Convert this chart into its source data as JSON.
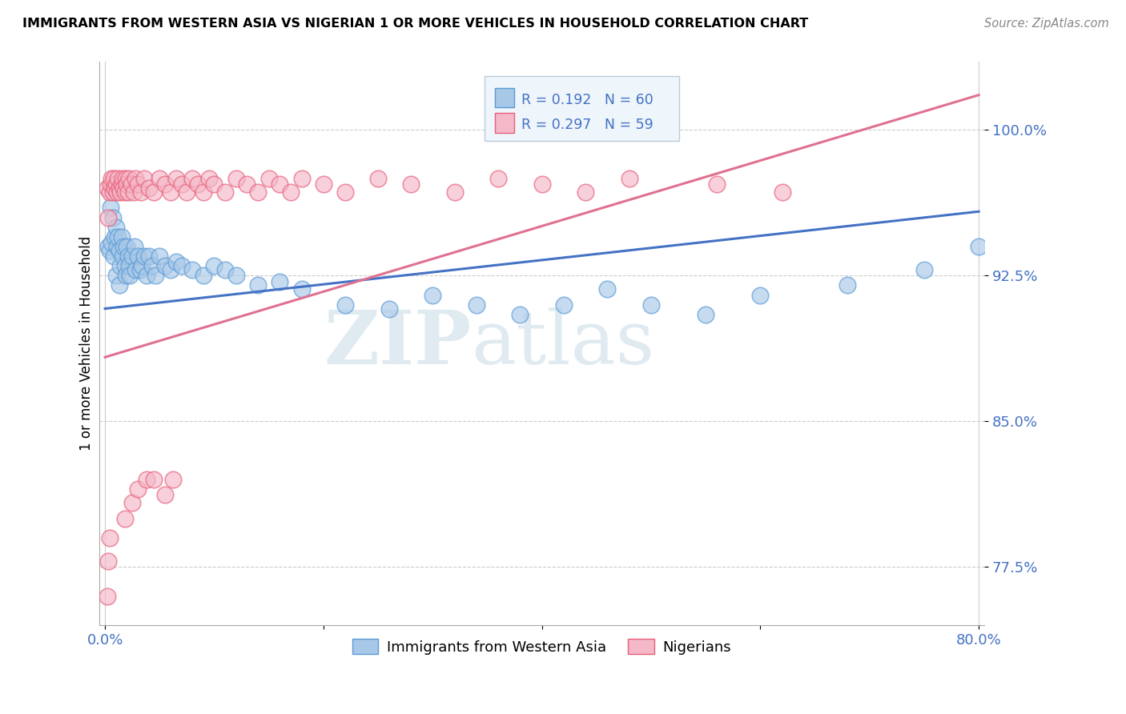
{
  "title": "IMMIGRANTS FROM WESTERN ASIA VS NIGERIAN 1 OR MORE VEHICLES IN HOUSEHOLD CORRELATION CHART",
  "source": "Source: ZipAtlas.com",
  "ylabel": "1 or more Vehicles in Household",
  "y_tick_vals": [
    0.775,
    0.85,
    0.925,
    1.0
  ],
  "xlim": [
    -0.005,
    0.805
  ],
  "ylim": [
    0.745,
    1.035
  ],
  "legend_entries": [
    {
      "label": "Immigrants from Western Asia",
      "color": "#a8c8e8",
      "edge_color": "#5b9bd5",
      "R": "0.192",
      "N": "60"
    },
    {
      "label": "Nigerians",
      "color": "#f4b8c8",
      "edge_color": "#e8607a",
      "R": "0.297",
      "N": "59"
    }
  ],
  "blue_line": {
    "x0": 0.0,
    "y0": 0.908,
    "x1": 0.8,
    "y1": 0.958
  },
  "pink_line": {
    "x0": 0.0,
    "y0": 0.883,
    "x1": 0.8,
    "y1": 1.018
  },
  "blue_scatter_x": [
    0.003,
    0.004,
    0.005,
    0.006,
    0.007,
    0.008,
    0.009,
    0.01,
    0.01,
    0.011,
    0.012,
    0.013,
    0.013,
    0.014,
    0.015,
    0.016,
    0.017,
    0.018,
    0.019,
    0.02,
    0.021,
    0.022,
    0.023,
    0.025,
    0.027,
    0.028,
    0.03,
    0.032,
    0.034,
    0.036,
    0.038,
    0.04,
    0.043,
    0.046,
    0.05,
    0.055,
    0.06,
    0.065,
    0.07,
    0.08,
    0.09,
    0.1,
    0.11,
    0.12,
    0.14,
    0.16,
    0.18,
    0.22,
    0.26,
    0.3,
    0.34,
    0.38,
    0.42,
    0.46,
    0.5,
    0.55,
    0.6,
    0.68,
    0.75,
    0.8
  ],
  "blue_scatter_y": [
    0.94,
    0.938,
    0.96,
    0.942,
    0.955,
    0.935,
    0.945,
    0.95,
    0.925,
    0.94,
    0.945,
    0.938,
    0.92,
    0.93,
    0.945,
    0.935,
    0.94,
    0.93,
    0.925,
    0.94,
    0.935,
    0.93,
    0.925,
    0.935,
    0.94,
    0.928,
    0.935,
    0.928,
    0.93,
    0.935,
    0.925,
    0.935,
    0.93,
    0.925,
    0.935,
    0.93,
    0.928,
    0.932,
    0.93,
    0.928,
    0.925,
    0.93,
    0.928,
    0.925,
    0.92,
    0.922,
    0.918,
    0.91,
    0.908,
    0.915,
    0.91,
    0.905,
    0.91,
    0.918,
    0.91,
    0.905,
    0.915,
    0.92,
    0.928,
    0.94
  ],
  "pink_scatter_x": [
    0.002,
    0.003,
    0.004,
    0.005,
    0.006,
    0.007,
    0.008,
    0.009,
    0.01,
    0.011,
    0.012,
    0.013,
    0.014,
    0.015,
    0.016,
    0.017,
    0.018,
    0.019,
    0.02,
    0.021,
    0.022,
    0.024,
    0.026,
    0.028,
    0.03,
    0.033,
    0.036,
    0.04,
    0.045,
    0.05,
    0.055,
    0.06,
    0.065,
    0.07,
    0.075,
    0.08,
    0.085,
    0.09,
    0.095,
    0.1,
    0.11,
    0.12,
    0.13,
    0.14,
    0.15,
    0.16,
    0.17,
    0.18,
    0.2,
    0.22,
    0.25,
    0.28,
    0.32,
    0.36,
    0.4,
    0.44,
    0.48,
    0.56,
    0.62
  ],
  "pink_scatter_x_low": [
    0.002,
    0.003,
    0.004,
    0.018,
    0.025,
    0.03,
    0.038,
    0.045,
    0.055,
    0.062
  ],
  "pink_scatter_y_low": [
    0.76,
    0.778,
    0.79,
    0.8,
    0.808,
    0.815,
    0.82,
    0.82,
    0.812,
    0.82
  ],
  "pink_scatter_y": [
    0.97,
    0.955,
    0.968,
    0.972,
    0.975,
    0.968,
    0.975,
    0.97,
    0.972,
    0.968,
    0.975,
    0.97,
    0.968,
    0.972,
    0.975,
    0.97,
    0.968,
    0.975,
    0.972,
    0.968,
    0.975,
    0.972,
    0.968,
    0.975,
    0.972,
    0.968,
    0.975,
    0.97,
    0.968,
    0.975,
    0.972,
    0.968,
    0.975,
    0.972,
    0.968,
    0.975,
    0.972,
    0.968,
    0.975,
    0.972,
    0.968,
    0.975,
    0.972,
    0.968,
    0.975,
    0.972,
    0.968,
    0.975,
    0.972,
    0.968,
    0.975,
    0.972,
    0.968,
    0.975,
    0.972,
    0.968,
    0.975,
    0.972,
    0.968
  ],
  "watermark_zip": "ZIP",
  "watermark_atlas": "atlas",
  "blue_color": "#a8c8e8",
  "blue_edge": "#5b9bd5",
  "pink_color": "#f4b8c8",
  "pink_edge": "#e8607a",
  "blue_line_color": "#4472c4",
  "pink_line_color": "#e07090"
}
